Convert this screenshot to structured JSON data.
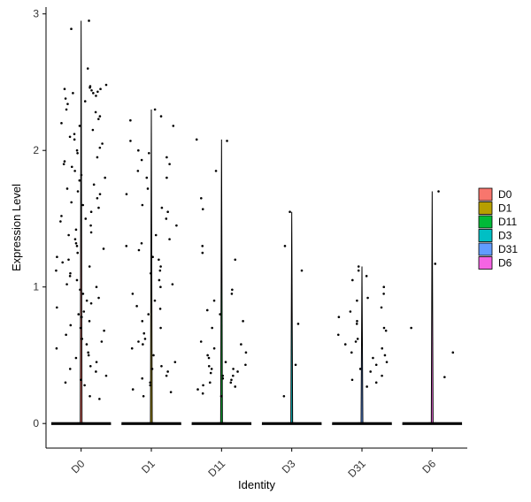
{
  "chart_data": {
    "type": "violin",
    "xlabel": "Identity",
    "ylabel": "Expression Level",
    "ylim": [
      -0.18,
      3.05
    ],
    "yticks": [
      0,
      1,
      2,
      3
    ],
    "grid": false,
    "legend_position": "right",
    "categories": [
      "D0",
      "D1",
      "D11",
      "D3",
      "D31",
      "D6"
    ],
    "series": [
      {
        "name": "D0",
        "color": "#F8766D",
        "max": 2.95,
        "zero_width": 0.85,
        "points": [
          2.95,
          2.89,
          2.6,
          2.48,
          2.47,
          2.46,
          2.45,
          2.45,
          2.44,
          2.43,
          2.42,
          2.42,
          2.4,
          2.38,
          2.36,
          2.34,
          2.3,
          2.28,
          2.25,
          2.23,
          2.2,
          2.18,
          2.15,
          2.12,
          2.1,
          2.08,
          2.05,
          2.02,
          2.0,
          1.98,
          1.95,
          1.92,
          1.9,
          1.88,
          1.85,
          1.82,
          1.8,
          1.78,
          1.75,
          1.72,
          1.7,
          1.68,
          1.65,
          1.62,
          1.6,
          1.58,
          1.55,
          1.52,
          1.5,
          1.48,
          1.45,
          1.42,
          1.4,
          1.38,
          1.35,
          1.32,
          1.3,
          1.28,
          1.25,
          1.22,
          1.2,
          1.18,
          1.15,
          1.12,
          1.1,
          1.08,
          1.05,
          1.02,
          1.0,
          0.98,
          0.95,
          0.92,
          0.9,
          0.88,
          0.85,
          0.82,
          0.8,
          0.78,
          0.75,
          0.72,
          0.7,
          0.68,
          0.65,
          0.62,
          0.6,
          0.58,
          0.55,
          0.52,
          0.5,
          0.48,
          0.45,
          0.42,
          0.4,
          0.38,
          0.35,
          0.32,
          0.3,
          0.28,
          0.2,
          0.18
        ]
      },
      {
        "name": "D1",
        "color": "#B79F00",
        "max": 2.3,
        "zero_width": 0.85,
        "points": [
          2.3,
          2.25,
          2.22,
          2.18,
          2.07,
          2.0,
          1.98,
          1.95,
          1.93,
          1.9,
          1.85,
          1.8,
          1.8,
          1.72,
          1.68,
          1.6,
          1.58,
          1.55,
          1.5,
          1.45,
          1.38,
          1.35,
          1.32,
          1.3,
          1.27,
          1.22,
          1.2,
          1.15,
          1.12,
          1.1,
          1.05,
          1.02,
          1.0,
          0.95,
          0.9,
          0.86,
          0.84,
          0.8,
          0.75,
          0.7,
          0.66,
          0.62,
          0.6,
          0.58,
          0.55,
          0.5,
          0.45,
          0.42,
          0.4,
          0.38,
          0.35,
          0.33,
          0.3,
          0.28,
          0.25,
          0.23,
          0.2
        ]
      },
      {
        "name": "D11",
        "color": "#00BA38",
        "max": 2.08,
        "zero_width": 0.85,
        "points": [
          2.08,
          2.07,
          1.85,
          1.65,
          1.57,
          1.3,
          1.25,
          1.2,
          0.98,
          0.95,
          0.9,
          0.83,
          0.8,
          0.75,
          0.7,
          0.6,
          0.58,
          0.55,
          0.52,
          0.5,
          0.48,
          0.45,
          0.43,
          0.42,
          0.4,
          0.4,
          0.38,
          0.37,
          0.35,
          0.35,
          0.33,
          0.32,
          0.3,
          0.3,
          0.28,
          0.27,
          0.25,
          0.22,
          0.2
        ]
      },
      {
        "name": "D3",
        "color": "#00BFC4",
        "max": 1.55,
        "zero_width": 0.85,
        "points": [
          1.55,
          1.3,
          1.12,
          0.73,
          0.43,
          0.2
        ]
      },
      {
        "name": "D31",
        "color": "#619CFF",
        "max": 1.15,
        "zero_width": 0.85,
        "points": [
          1.15,
          1.12,
          1.08,
          1.05,
          1.0,
          0.95,
          0.92,
          0.9,
          0.85,
          0.82,
          0.78,
          0.75,
          0.73,
          0.7,
          0.68,
          0.65,
          0.62,
          0.6,
          0.58,
          0.55,
          0.52,
          0.5,
          0.48,
          0.45,
          0.43,
          0.4,
          0.38,
          0.35,
          0.32,
          0.3,
          0.27
        ]
      },
      {
        "name": "D6",
        "color": "#F564E3",
        "max": 1.7,
        "zero_width": 0.85,
        "points": [
          1.7,
          1.17,
          0.7,
          0.52,
          0.34
        ]
      }
    ]
  }
}
